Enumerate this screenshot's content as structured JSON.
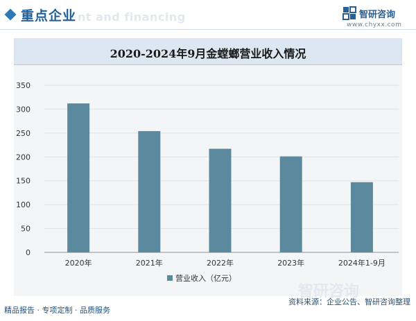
{
  "header": {
    "section_title": "重点企业",
    "watermark_text": "nt and financing",
    "brand_name": "智研咨询",
    "brand_url": "www.chyxx.com"
  },
  "chart_data": {
    "type": "bar",
    "title": "2020-2024年9月金螳螂营业收入情况",
    "categories": [
      "2020年",
      "2021年",
      "2022年",
      "2023年",
      "2024年1-9月"
    ],
    "series": [
      {
        "name": "营业收入（亿元）",
        "values": [
          312,
          254,
          217,
          201,
          147
        ],
        "color": "#5b8a9e"
      }
    ],
    "ylim": [
      0,
      350
    ],
    "yticks": [
      0,
      50,
      100,
      150,
      200,
      250,
      300,
      350
    ],
    "grid": true,
    "legend": "bottom"
  },
  "footer": {
    "left_text": "精品报告 · 专项定制 · 品质服务",
    "source_text": "资料来源：企业公告、智研咨询整理",
    "watermark_logo": "智研咨询"
  }
}
